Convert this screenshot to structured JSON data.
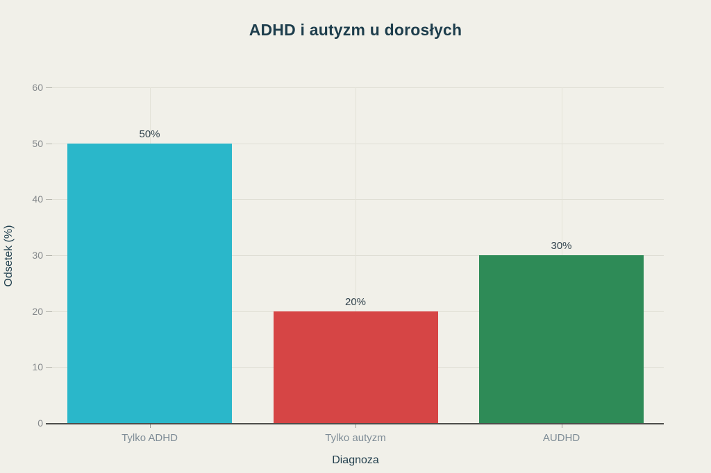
{
  "title": "ADHD i autyzm u dorosłych",
  "chart_data": {
    "type": "bar",
    "title": "ADHD i autyzm u dorosłych",
    "categories": [
      "Tylko ADHD",
      "Tylko autyzm",
      "AUDHD"
    ],
    "values": [
      50,
      20,
      30
    ],
    "value_labels": [
      "50%",
      "20%",
      "30%"
    ],
    "bar_colors": [
      "#2ab7ca",
      "#d64545",
      "#2e8b57"
    ],
    "xlabel": "Diagnoza",
    "ylabel": "Odsetek (%)",
    "ylim": [
      0,
      60
    ],
    "yticks": [
      0,
      10,
      20,
      30,
      40,
      50,
      60
    ],
    "grid": true,
    "legend": false,
    "background_color": "#f1f0e9",
    "axis_line_color": "#4d4d4b"
  }
}
